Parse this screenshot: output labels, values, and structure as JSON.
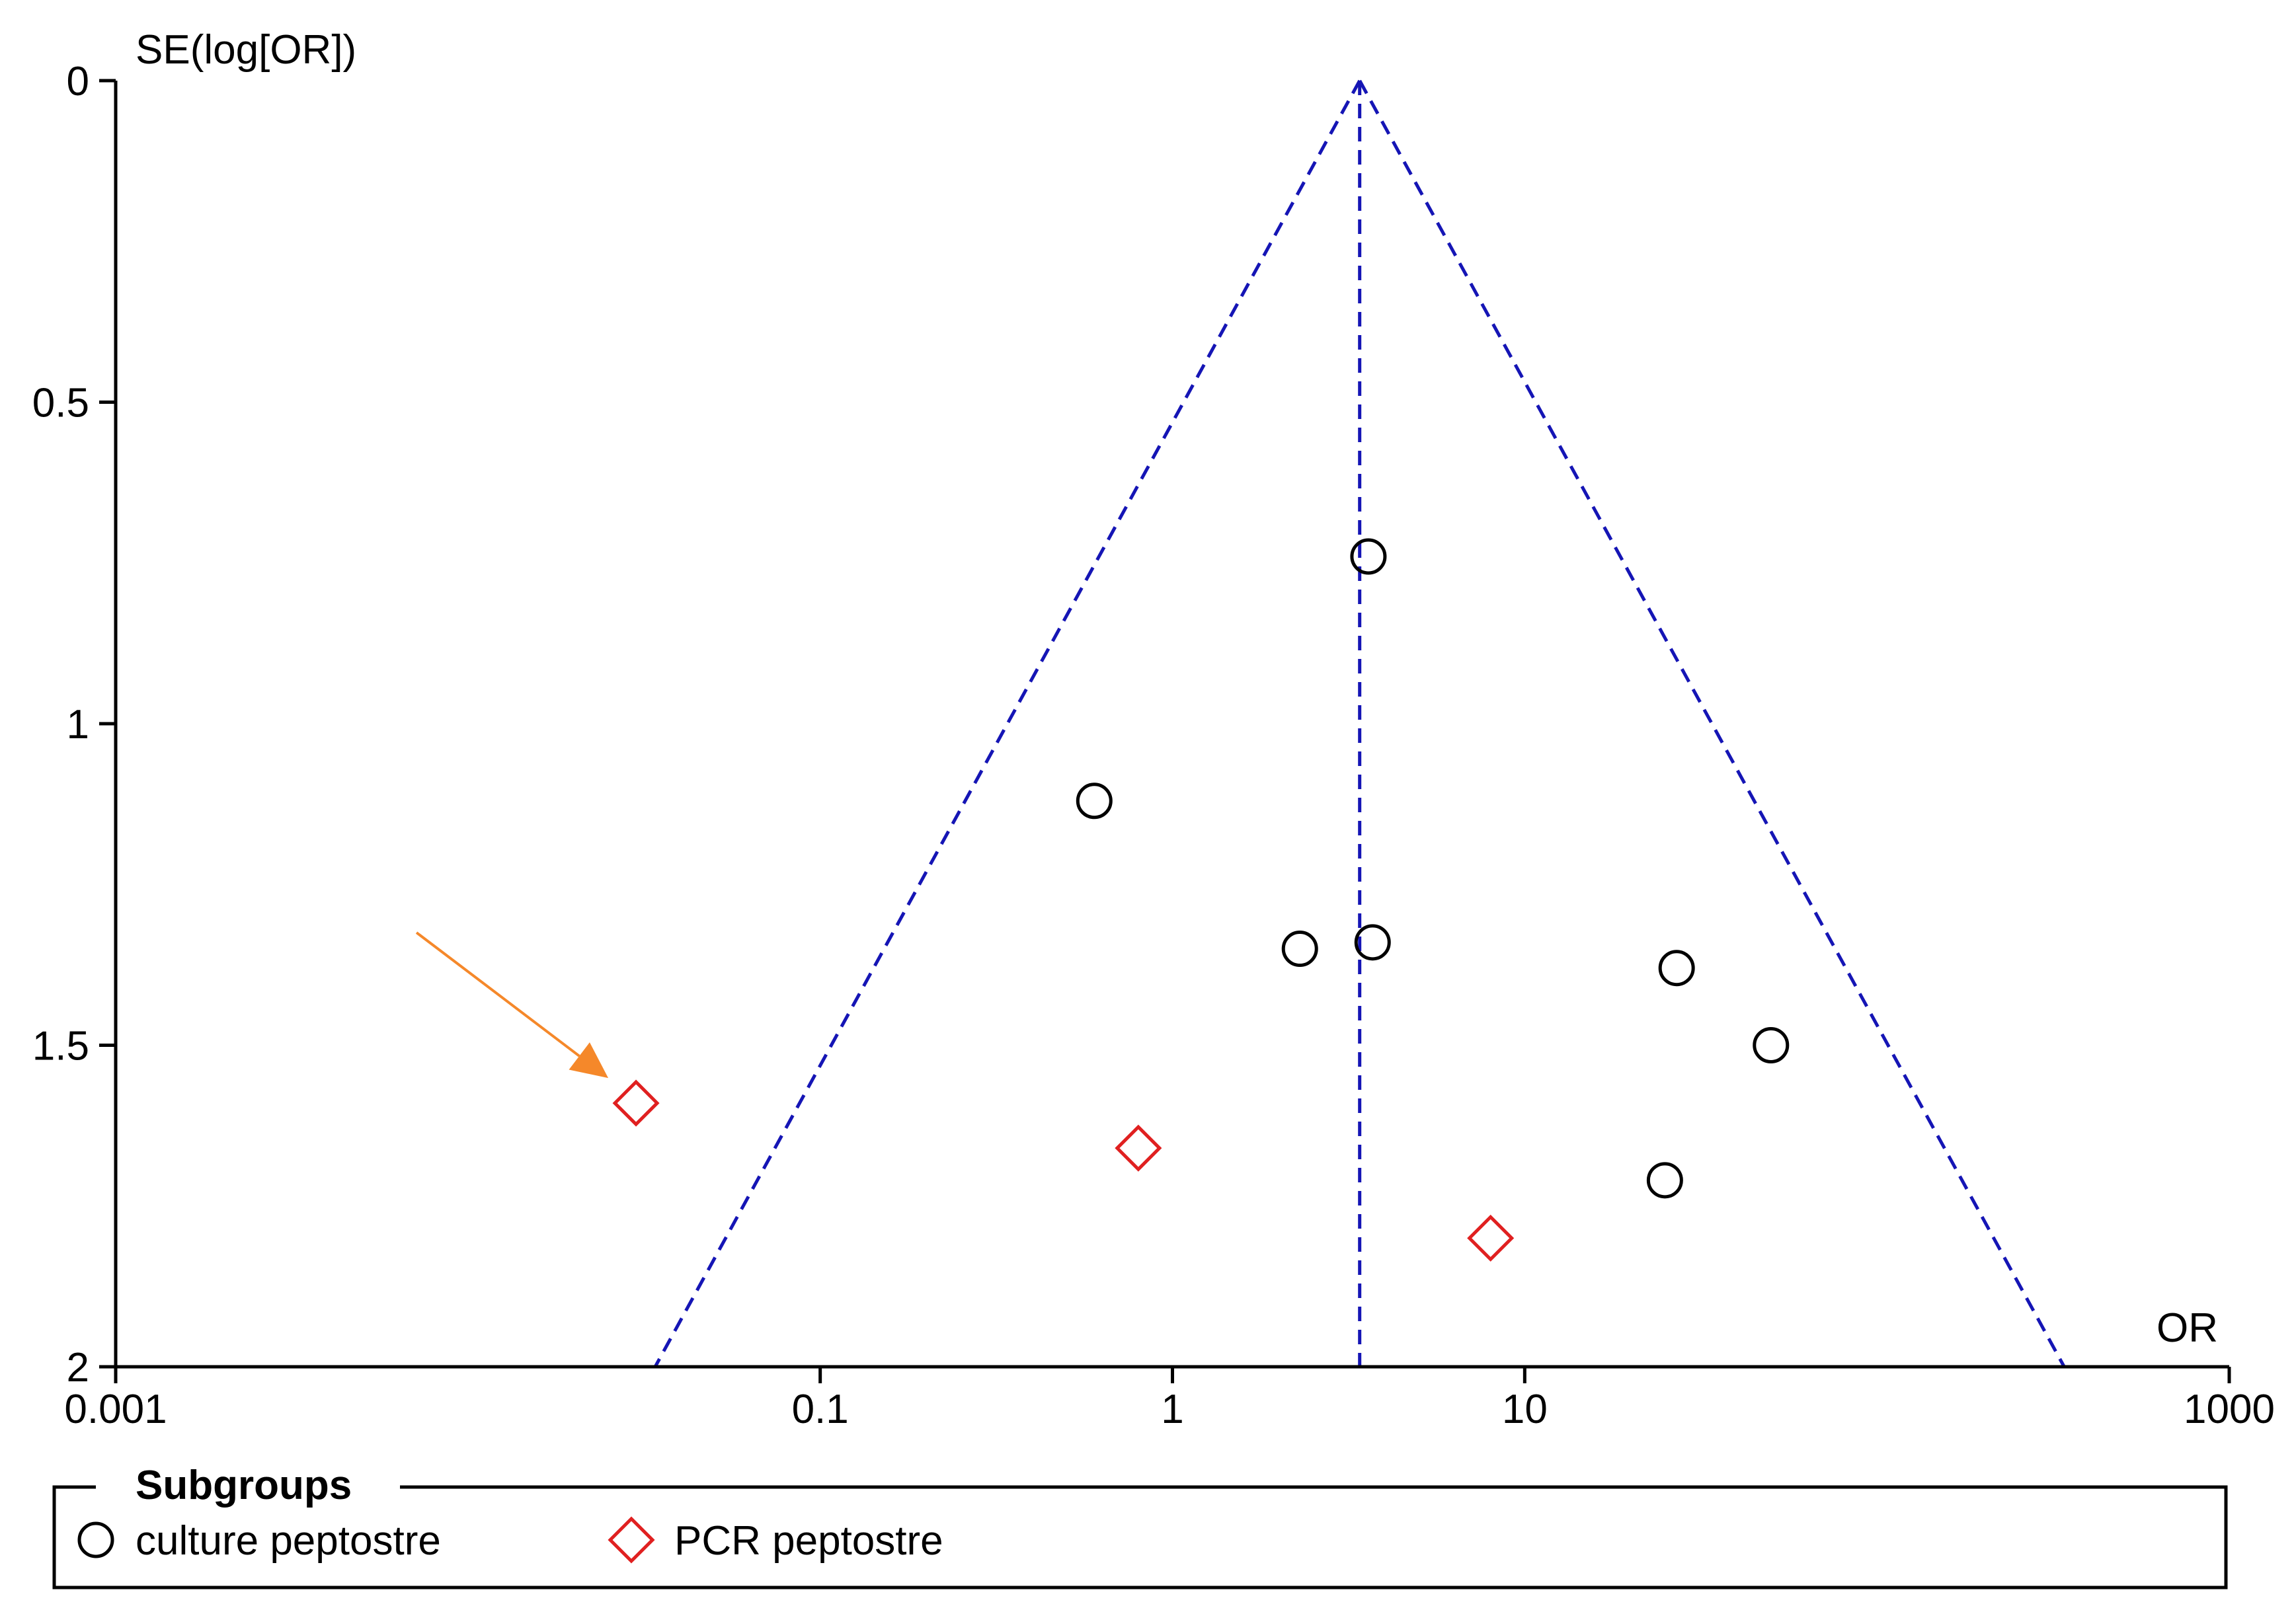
{
  "chart_data": {
    "type": "scatter",
    "subtype": "funnel-plot",
    "xlabel": "OR",
    "ylabel": "SE(log[OR])",
    "x_scale": "log",
    "xlim": [
      0.001,
      1000
    ],
    "ylim": [
      0,
      2
    ],
    "y_inverted": true,
    "x_ticks": [
      {
        "value": 0.001,
        "label": "0.001"
      },
      {
        "value": 0.1,
        "label": "0.1"
      },
      {
        "value": 1,
        "label": "1"
      },
      {
        "value": 10,
        "label": "10"
      },
      {
        "value": 1000,
        "label": "1000"
      }
    ],
    "y_ticks": [
      {
        "value": 0,
        "label": "0"
      },
      {
        "value": 0.5,
        "label": "0.5"
      },
      {
        "value": 1,
        "label": "1"
      },
      {
        "value": 1.5,
        "label": "1.5"
      },
      {
        "value": 2,
        "label": "2"
      }
    ],
    "pooled_or": 3.4,
    "funnel_limits_at_se_2": [
      0.034,
      340
    ],
    "series": [
      {
        "name": "culture peptostre",
        "marker": "circle",
        "color": "#000000",
        "points": [
          {
            "or": 3.6,
            "se": 0.74
          },
          {
            "or": 0.6,
            "se": 1.12
          },
          {
            "or": 2.3,
            "se": 1.35
          },
          {
            "or": 3.7,
            "se": 1.34
          },
          {
            "or": 27,
            "se": 1.38
          },
          {
            "or": 50,
            "se": 1.5
          },
          {
            "or": 25,
            "se": 1.71
          }
        ]
      },
      {
        "name": "PCR peptostre",
        "marker": "diamond",
        "color": "#e02020",
        "points": [
          {
            "or": 0.03,
            "se": 1.59
          },
          {
            "or": 0.8,
            "se": 1.66
          },
          {
            "or": 8,
            "se": 1.8
          }
        ]
      }
    ],
    "annotation": {
      "type": "arrow",
      "color": "#f5882a",
      "points_to_series": "PCR peptostre",
      "points_to_index": 0
    },
    "legend": {
      "title": "Subgroups",
      "position": "bottom"
    },
    "colors": {
      "funnel": "#1515b5",
      "axis": "#000000",
      "arrow": "#f5882a"
    }
  }
}
